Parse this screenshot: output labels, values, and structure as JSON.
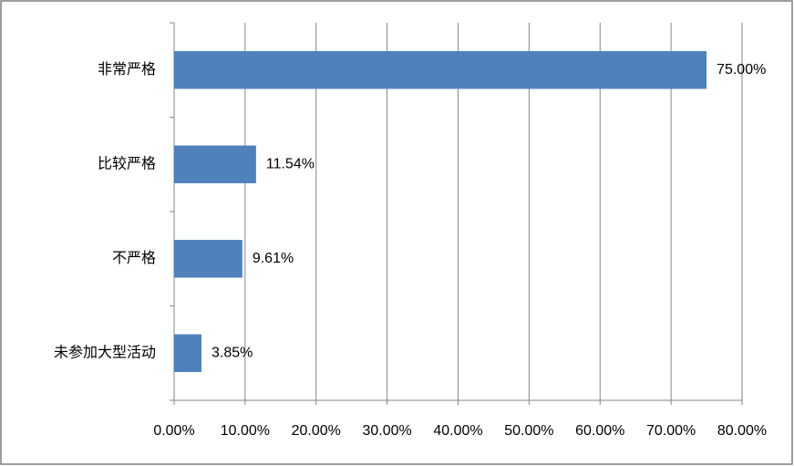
{
  "chart_data": {
    "type": "bar",
    "orientation": "horizontal",
    "categories": [
      "非常严格",
      "比较严格",
      "不严格",
      "未参加大型活动"
    ],
    "values": [
      75.0,
      11.54,
      9.61,
      3.85
    ],
    "value_labels": [
      "75.00%",
      "11.54%",
      "9.61%",
      "3.85%"
    ],
    "color": "#4f81bd",
    "xlim": [
      0,
      80
    ],
    "xticks": [
      {
        "value": 0,
        "label": "0.00%"
      },
      {
        "value": 10,
        "label": "10.00%"
      },
      {
        "value": 20,
        "label": "20.00%"
      },
      {
        "value": 30,
        "label": "30.00%"
      },
      {
        "value": 40,
        "label": "40.00%"
      },
      {
        "value": 50,
        "label": "50.00%"
      },
      {
        "value": 60,
        "label": "60.00%"
      },
      {
        "value": 70,
        "label": "70.00%"
      },
      {
        "value": 80,
        "label": "80.00%"
      }
    ],
    "grid": true
  }
}
